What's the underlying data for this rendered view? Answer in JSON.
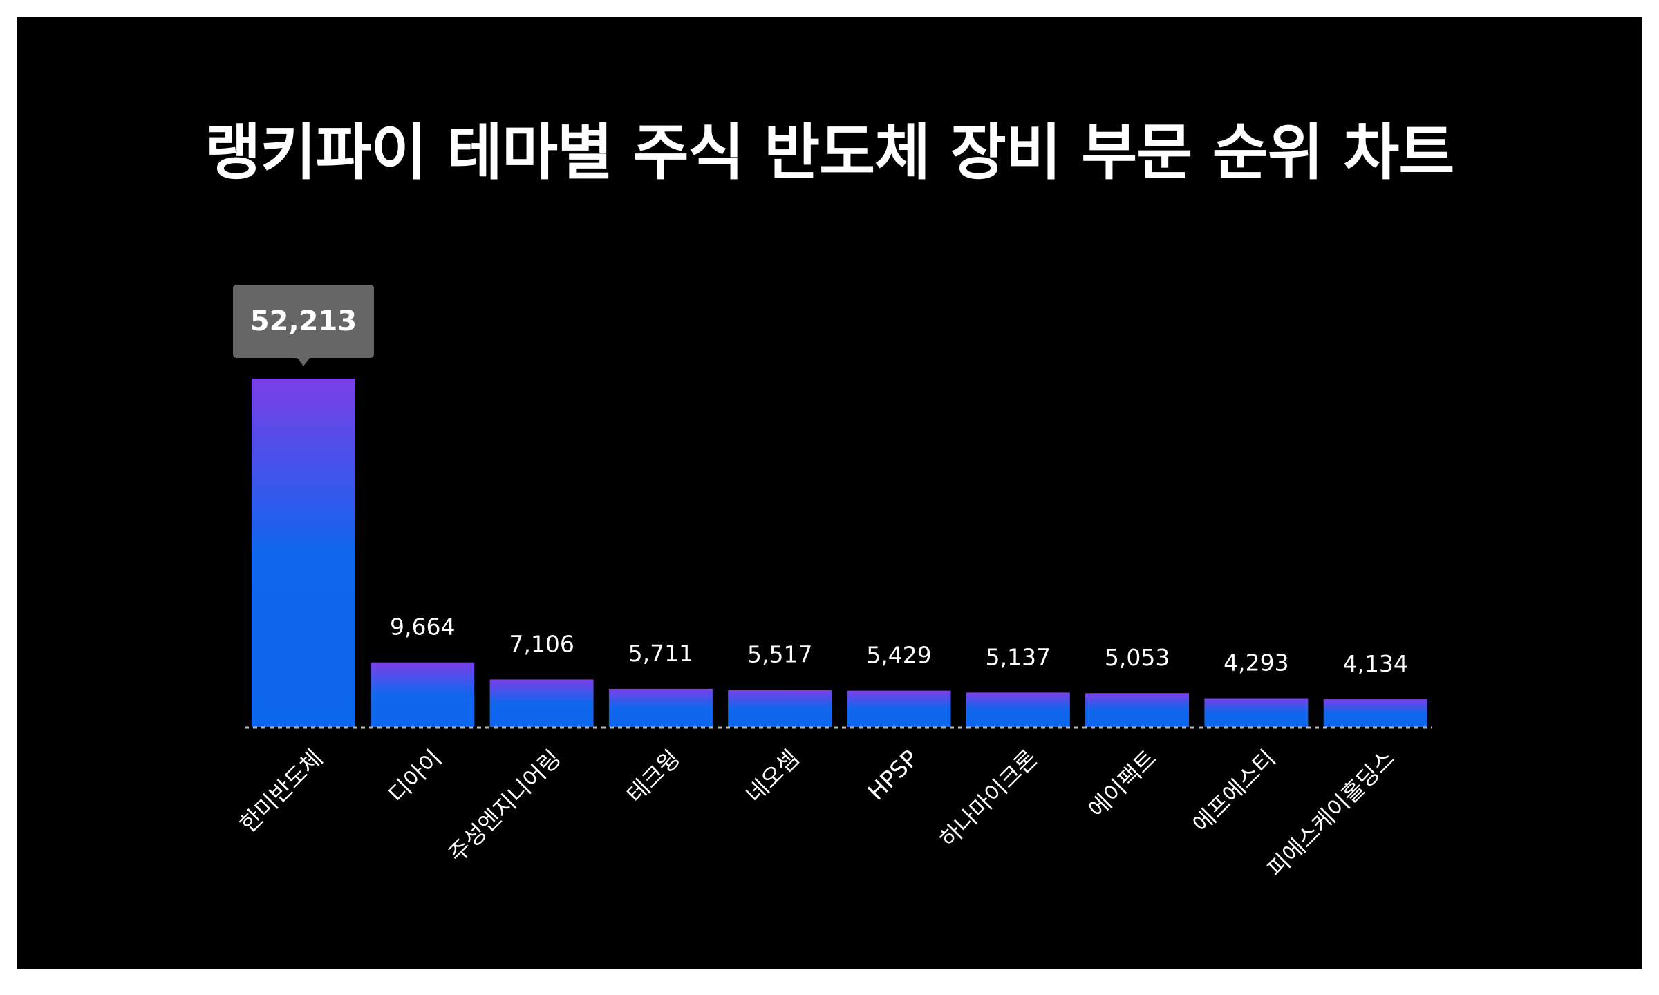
{
  "chart_data": {
    "type": "bar",
    "title": "랭키파이 테마별 주식 반도체 장비 부문 순위 차트",
    "categories": [
      "한미반도체",
      "디아이",
      "주성엔지니어링",
      "테크윙",
      "네오셈",
      "HPSP",
      "하나마이크론",
      "에이팩트",
      "에프에스티",
      "피에스케이홀딩스"
    ],
    "values": [
      52213,
      9664,
      7106,
      5711,
      5517,
      5429,
      5137,
      5053,
      4293,
      4134
    ],
    "value_labels": [
      "52,213",
      "9,664",
      "7,106",
      "5,711",
      "5,517",
      "5,429",
      "5,137",
      "5,053",
      "4,293",
      "4,134"
    ],
    "highlighted_index": 0,
    "ylim": [
      0,
      52213
    ],
    "grid": false,
    "colors": {
      "background": "#000000",
      "bar_top": "#7b3fe8",
      "bar_bottom": "#0d66ee",
      "tooltip": "#666666",
      "text": "#ffffff",
      "baseline": "#bbbbbb"
    }
  }
}
